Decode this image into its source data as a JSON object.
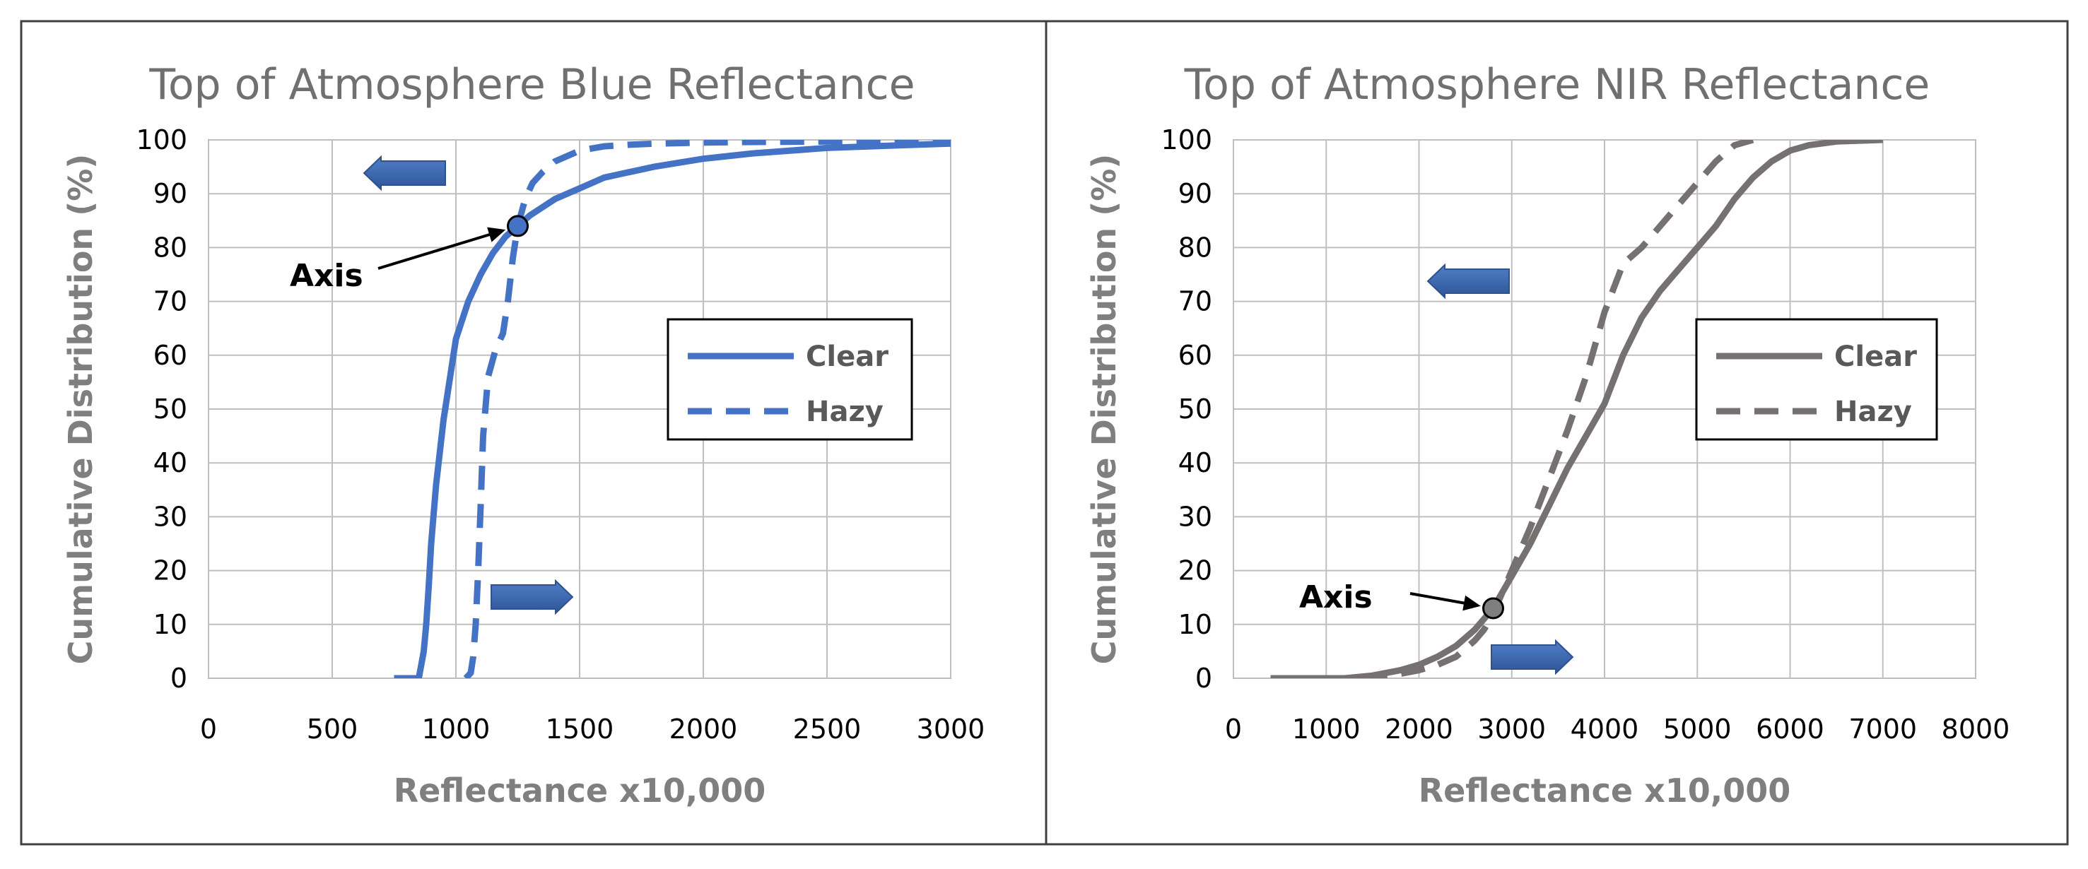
{
  "chart_data": [
    {
      "type": "line",
      "title": "Top of Atmosphere Blue Reflectance",
      "xlabel": "Reflectance x10,000",
      "ylabel": "Cumulative Distribution (%)",
      "xlim": [
        0,
        3000
      ],
      "ylim": [
        0,
        100
      ],
      "xticks": [
        "0",
        "500",
        "1000",
        "1500",
        "2000",
        "2500",
        "3000"
      ],
      "yticks": [
        "0",
        "10",
        "20",
        "30",
        "40",
        "50",
        "60",
        "70",
        "80",
        "90",
        "100"
      ],
      "grid": true,
      "legend_position": "right",
      "annotation": {
        "text": "Axis",
        "x": 1250,
        "y": 84
      },
      "series": [
        {
          "name": "Clear",
          "style": "solid",
          "color": "#4472c4",
          "x": [
            750,
            850,
            870,
            880,
            890,
            900,
            920,
            950,
            980,
            1000,
            1050,
            1100,
            1150,
            1200,
            1250,
            1300,
            1400,
            1500,
            1600,
            1700,
            1800,
            2000,
            2200,
            2500,
            2800,
            3000
          ],
          "y": [
            0,
            0,
            5,
            10,
            17,
            25,
            36,
            48,
            57,
            63,
            70,
            75,
            79,
            82,
            84,
            86,
            89,
            91,
            93,
            94,
            95,
            96.5,
            97.5,
            98.5,
            99,
            99.3
          ]
        },
        {
          "name": "Hazy",
          "style": "dashed",
          "color": "#4472c4",
          "x": [
            1040,
            1060,
            1070,
            1080,
            1090,
            1100,
            1110,
            1130,
            1160,
            1190,
            1210,
            1230,
            1250,
            1280,
            1310,
            1350,
            1400,
            1450,
            1500,
            1600,
            1700,
            1800,
            2000,
            2200,
            2500,
            2800,
            3000
          ],
          "y": [
            0,
            1,
            4,
            10,
            20,
            32,
            45,
            56,
            61,
            64,
            70,
            78,
            84,
            89,
            92,
            94,
            96,
            97,
            98,
            98.8,
            99.1,
            99.3,
            99.5,
            99.6,
            99.7,
            99.8,
            99.8
          ]
        }
      ]
    },
    {
      "type": "line",
      "title": "Top of Atmosphere NIR Reflectance",
      "xlabel": "Reflectance x10,000",
      "ylabel": "Cumulative Distribution (%)",
      "xlim": [
        0,
        8000
      ],
      "ylim": [
        0,
        100
      ],
      "xticks": [
        "0",
        "1000",
        "2000",
        "3000",
        "4000",
        "5000",
        "6000",
        "7000",
        "8000"
      ],
      "yticks": [
        "0",
        "10",
        "20",
        "30",
        "40",
        "50",
        "60",
        "70",
        "80",
        "90",
        "100"
      ],
      "grid": true,
      "legend_position": "right",
      "annotation": {
        "text": "Axis",
        "x": 2800,
        "y": 13
      },
      "series": [
        {
          "name": "Clear",
          "style": "solid",
          "color": "#767171",
          "x": [
            400,
            800,
            1200,
            1500,
            1800,
            2000,
            2200,
            2400,
            2600,
            2800,
            3000,
            3200,
            3400,
            3600,
            3800,
            4000,
            4200,
            4400,
            4600,
            4800,
            5000,
            5200,
            5400,
            5600,
            5800,
            6000,
            6200,
            6500,
            7000
          ],
          "y": [
            0,
            0,
            0,
            0.5,
            1.5,
            2.5,
            4,
            6,
            9,
            13,
            19,
            25,
            32,
            39,
            45,
            51,
            60,
            67,
            72,
            76,
            80,
            84,
            89,
            93,
            96,
            98,
            99,
            99.7,
            100
          ]
        },
        {
          "name": "Hazy",
          "style": "dashed",
          "color": "#767171",
          "x": [
            1400,
            1700,
            2000,
            2200,
            2400,
            2600,
            2700,
            2800,
            3000,
            3200,
            3400,
            3600,
            3800,
            4000,
            4200,
            4400,
            4600,
            4800,
            5000,
            5200,
            5400,
            5600
          ],
          "y": [
            0,
            0.5,
            1.5,
            2.5,
            4,
            7,
            9,
            12,
            20,
            28,
            37,
            46,
            56,
            68,
            77,
            80,
            84,
            88,
            92,
            96,
            99,
            100
          ]
        }
      ]
    }
  ]
}
